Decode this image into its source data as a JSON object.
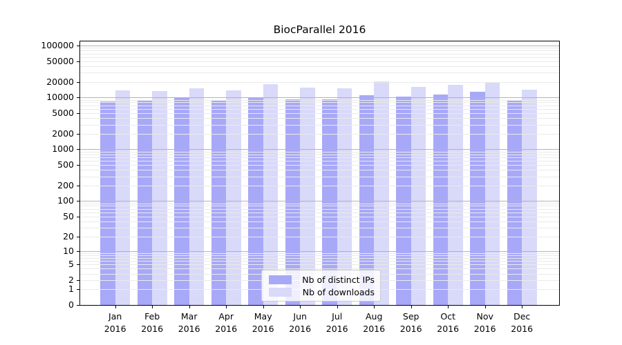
{
  "chart_data": {
    "type": "bar",
    "title": "BiocParallel 2016",
    "categories": [
      "Jan",
      "Feb",
      "Mar",
      "Apr",
      "May",
      "Jun",
      "Jul",
      "Aug",
      "Sep",
      "Oct",
      "Nov",
      "Dec"
    ],
    "x_year": "2016",
    "series": [
      {
        "name": "Nb of distinct IPs",
        "color": "#a8a8f8",
        "values": [
          8400,
          8900,
          9800,
          8700,
          10100,
          9300,
          9100,
          10900,
          10400,
          11500,
          12800,
          8900
        ]
      },
      {
        "name": "Nb of downloads",
        "color": "#d9d9fa",
        "values": [
          13700,
          13300,
          15000,
          13800,
          18000,
          15500,
          15000,
          20500,
          16100,
          17500,
          19800,
          14100
        ]
      }
    ],
    "y_ticks": [
      100000,
      50000,
      20000,
      10000,
      5000,
      2000,
      1000,
      500,
      200,
      100,
      50,
      20,
      10,
      5,
      2,
      1,
      0
    ],
    "y_scale": "log10(1+x)",
    "ylim": [
      0,
      100000
    ],
    "grid": true,
    "legend_position": "lower-center",
    "colors": {
      "major_grid": "#b3b3b3",
      "minor_grid": "#eaeaea",
      "axis": "#000000",
      "background": "#ffffff",
      "text": "#000000"
    }
  }
}
